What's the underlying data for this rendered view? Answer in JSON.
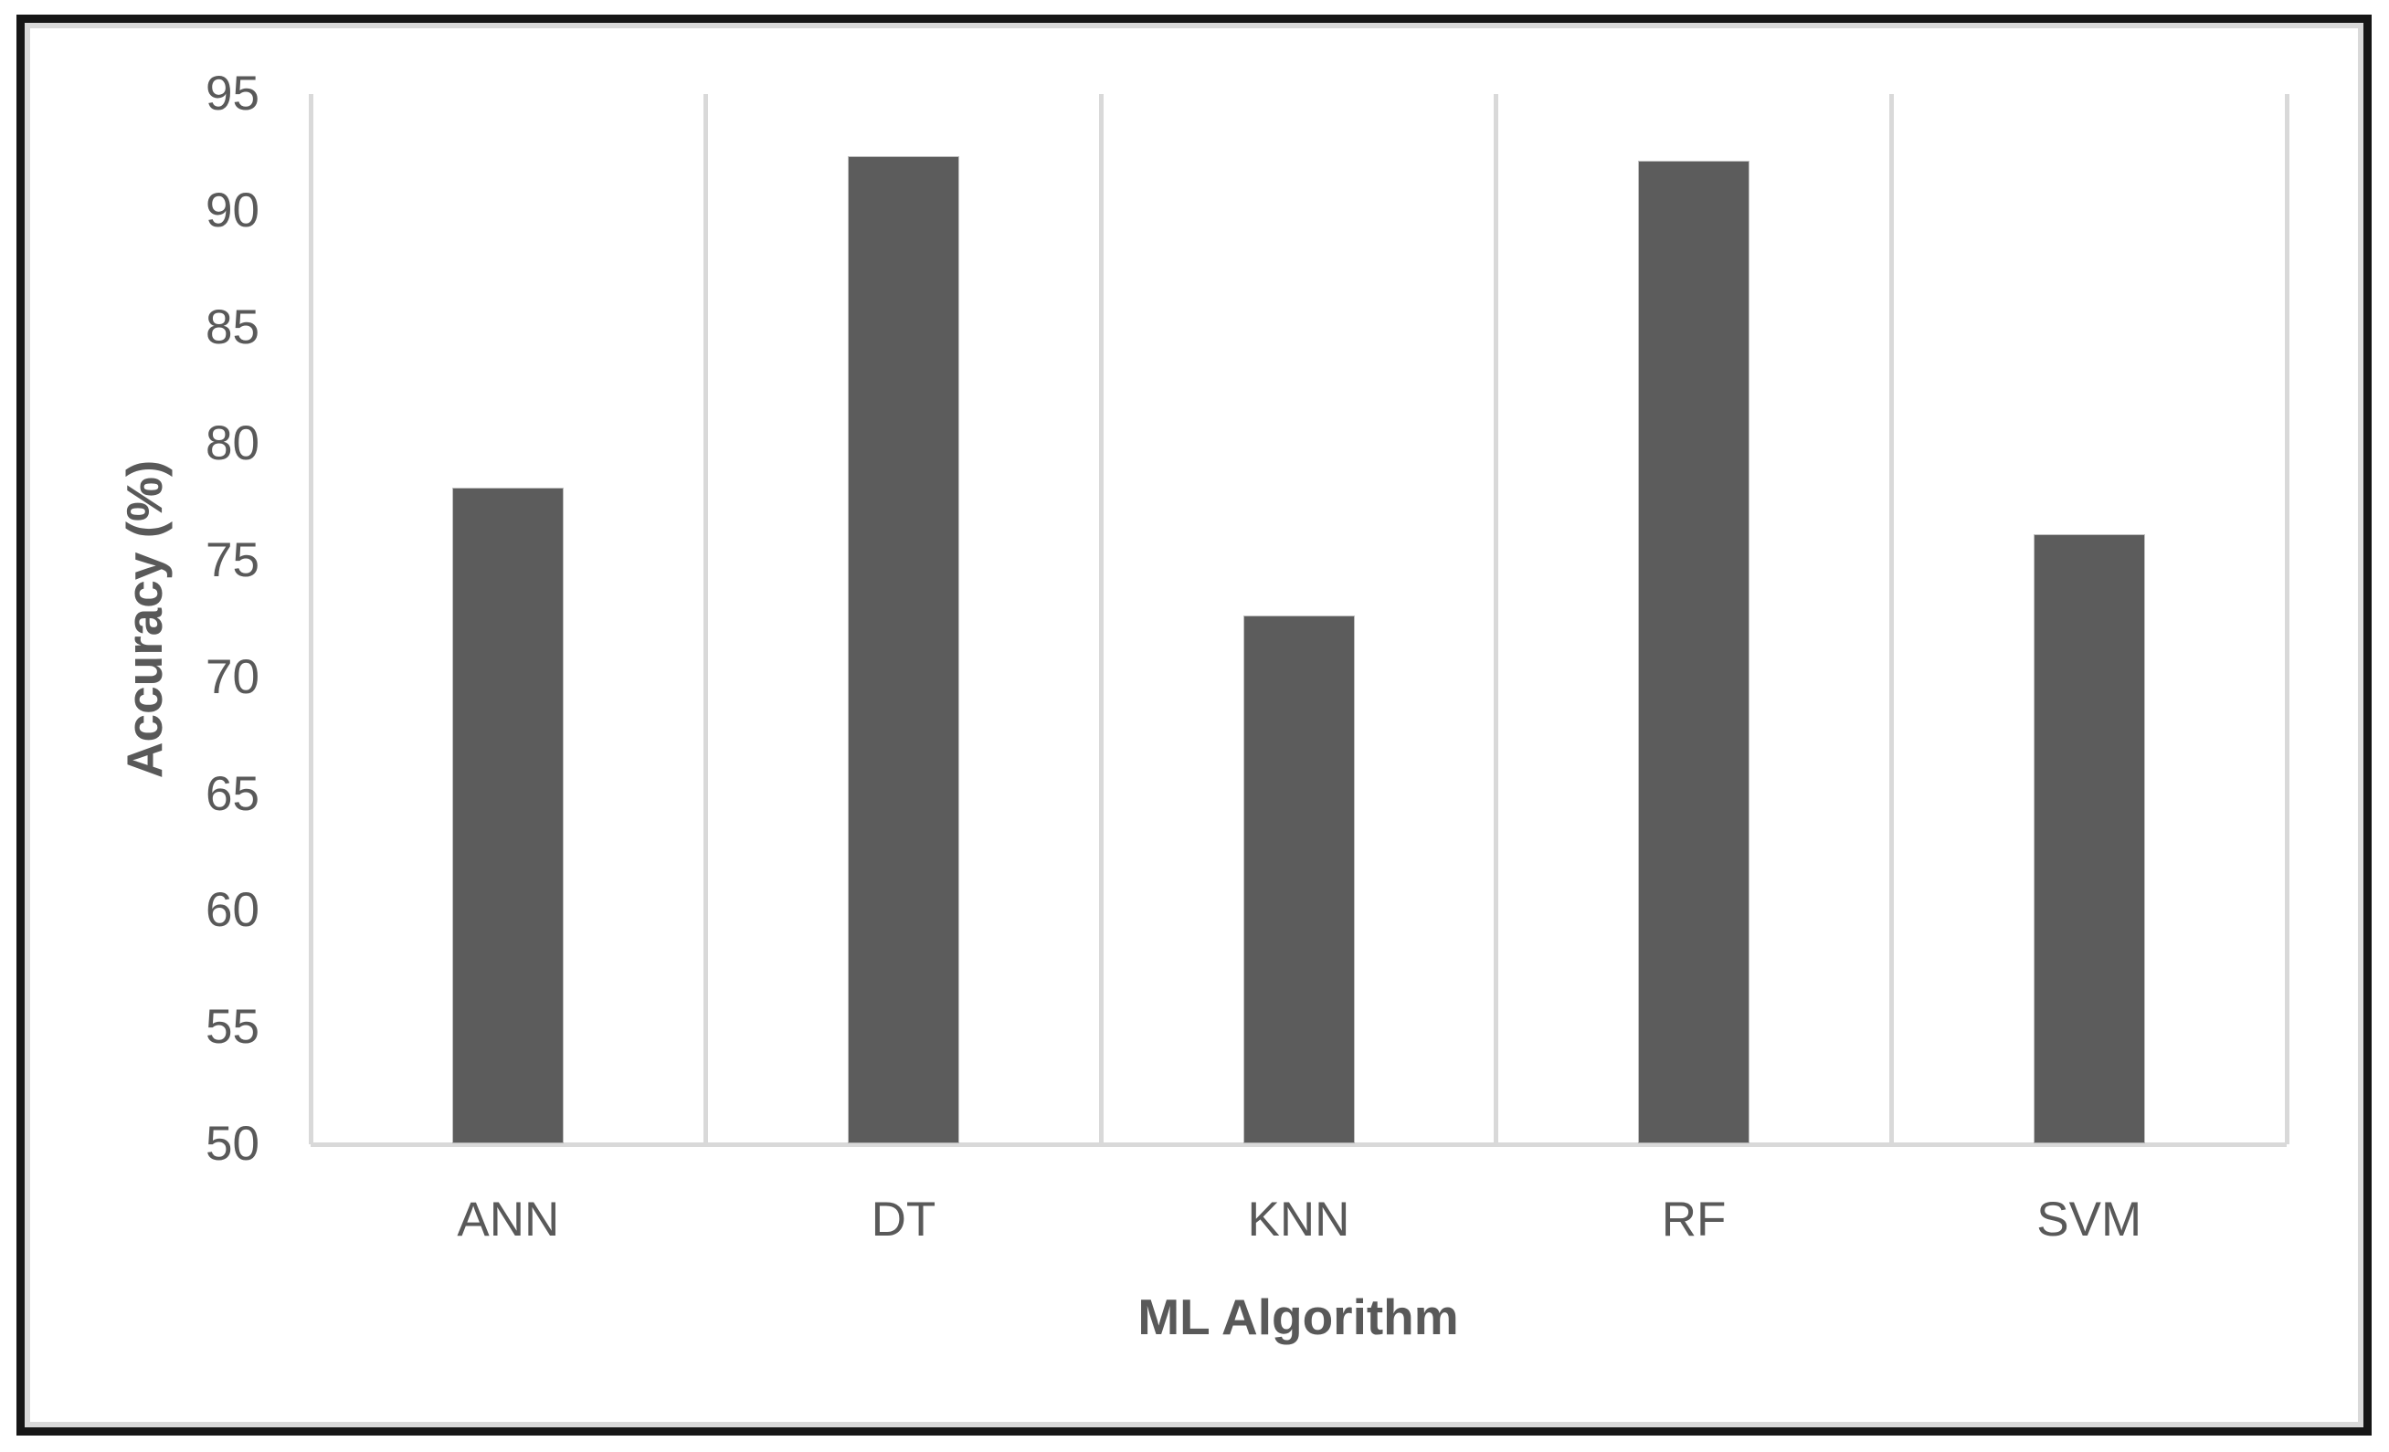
{
  "chart_data": {
    "type": "bar",
    "title": "",
    "xlabel": "ML Algorithm",
    "ylabel": "Accuracy (%)",
    "categories": [
      "ANN",
      "DT",
      "KNN",
      "RF",
      "SVM"
    ],
    "values": [
      78.1,
      92.3,
      72.6,
      92.1,
      76.1
    ],
    "series": [
      {
        "name": "Accuracy",
        "values": [
          78.1,
          92.3,
          72.6,
          92.1,
          76.1
        ]
      }
    ],
    "ylim": [
      50,
      95
    ],
    "ytick_step": 5,
    "ytick_labels": [
      "50",
      "55",
      "60",
      "65",
      "70",
      "75",
      "80",
      "85",
      "90",
      "95"
    ],
    "grid": "vertical category separators only, no horizontal gridlines",
    "legend": "none",
    "colors": {
      "bar_fill": "#5c5c5c",
      "gridline": "#d9d9d9",
      "text": "#595959",
      "frame_border": "#161616",
      "frame_inner_line": "#d9d9d9",
      "background": "#ffffff"
    }
  }
}
